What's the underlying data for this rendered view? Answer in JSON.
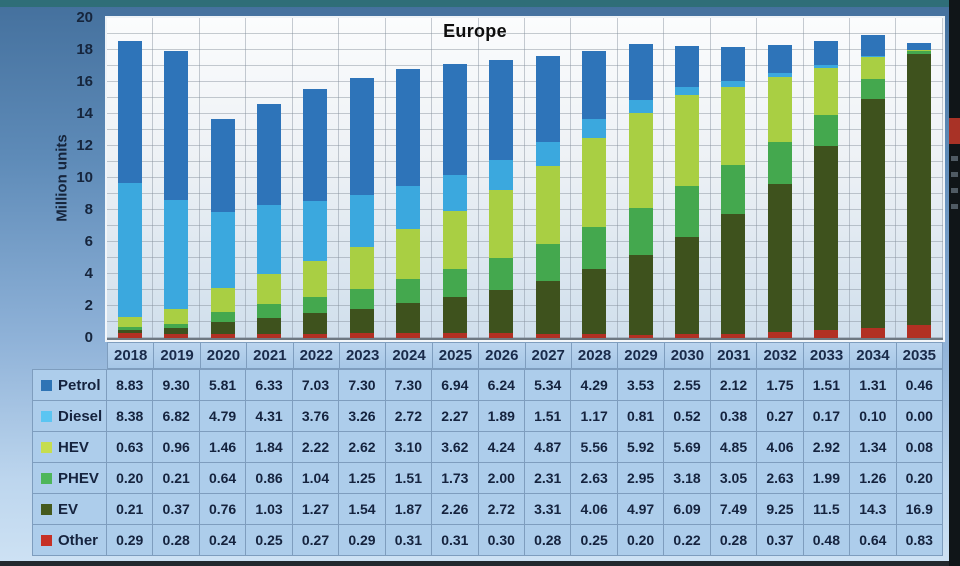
{
  "title": "Europe",
  "y_axis": {
    "label": "Million units",
    "min": 0,
    "max": 20,
    "tick_step": 2,
    "ticks": [
      "0",
      "2",
      "4",
      "6",
      "8",
      "10",
      "12",
      "14",
      "16",
      "18",
      "20"
    ]
  },
  "chart_data": {
    "type": "bar",
    "stacked": true,
    "title": "Europe",
    "ylabel": "Million units",
    "ylim": [
      0,
      20
    ],
    "grid": "horizontal lines every 1 unit, vertical line per category column",
    "legend_position": "left column of data table below chart",
    "categories": [
      "2018",
      "2019",
      "2020",
      "2021",
      "2022",
      "2023",
      "2024",
      "2025",
      "2026",
      "2027",
      "2028",
      "2029",
      "2030",
      "2031",
      "2032",
      "2033",
      "2034",
      "2035"
    ],
    "series": [
      {
        "name": "Petrol",
        "color": "#2E74B9",
        "legend_color": "#2E74B5",
        "values": [
          "8.83",
          "9.30",
          "5.81",
          "6.33",
          "7.03",
          "7.30",
          "7.30",
          "6.94",
          "6.24",
          "5.34",
          "4.29",
          "3.53",
          "2.55",
          "2.12",
          "1.75",
          "1.51",
          "1.31",
          "0.46"
        ]
      },
      {
        "name": "Diesel",
        "color": "#3BA8DE",
        "legend_color": "#5BC5F2",
        "values": [
          "8.38",
          "6.82",
          "4.79",
          "4.31",
          "3.76",
          "3.26",
          "2.72",
          "2.27",
          "1.89",
          "1.51",
          "1.17",
          "0.81",
          "0.52",
          "0.38",
          "0.27",
          "0.17",
          "0.10",
          "0.00"
        ]
      },
      {
        "name": "HEV",
        "color": "#A9CF43",
        "legend_color": "#C6DD4F",
        "values": [
          "0.63",
          "0.96",
          "1.46",
          "1.84",
          "2.22",
          "2.62",
          "3.10",
          "3.62",
          "4.24",
          "4.87",
          "5.56",
          "5.92",
          "5.69",
          "4.85",
          "4.06",
          "2.92",
          "1.34",
          "0.08"
        ]
      },
      {
        "name": "PHEV",
        "color": "#44A84E",
        "legend_color": "#4EB65A",
        "values": [
          "0.20",
          "0.21",
          "0.64",
          "0.86",
          "1.04",
          "1.25",
          "1.51",
          "1.73",
          "2.00",
          "2.31",
          "2.63",
          "2.95",
          "3.18",
          "3.05",
          "2.63",
          "1.99",
          "1.26",
          "0.20"
        ]
      },
      {
        "name": "EV",
        "color": "#3E521D",
        "legend_color": "#455A1E",
        "values": [
          "0.21",
          "0.37",
          "0.76",
          "1.03",
          "1.27",
          "1.54",
          "1.87",
          "2.26",
          "2.72",
          "3.31",
          "4.06",
          "4.97",
          "6.09",
          "7.49",
          "9.25",
          "11.5",
          "14.3",
          "16.9"
        ]
      },
      {
        "name": "Other",
        "color": "#B23023",
        "legend_color": "#C63026",
        "values": [
          "0.29",
          "0.28",
          "0.24",
          "0.25",
          "0.27",
          "0.29",
          "0.31",
          "0.31",
          "0.30",
          "0.28",
          "0.25",
          "0.20",
          "0.22",
          "0.28",
          "0.37",
          "0.48",
          "0.64",
          "0.83"
        ]
      }
    ],
    "stack_order_bottom_to_top": [
      "Other",
      "EV",
      "PHEV",
      "HEV",
      "Diesel",
      "Petrol"
    ]
  }
}
